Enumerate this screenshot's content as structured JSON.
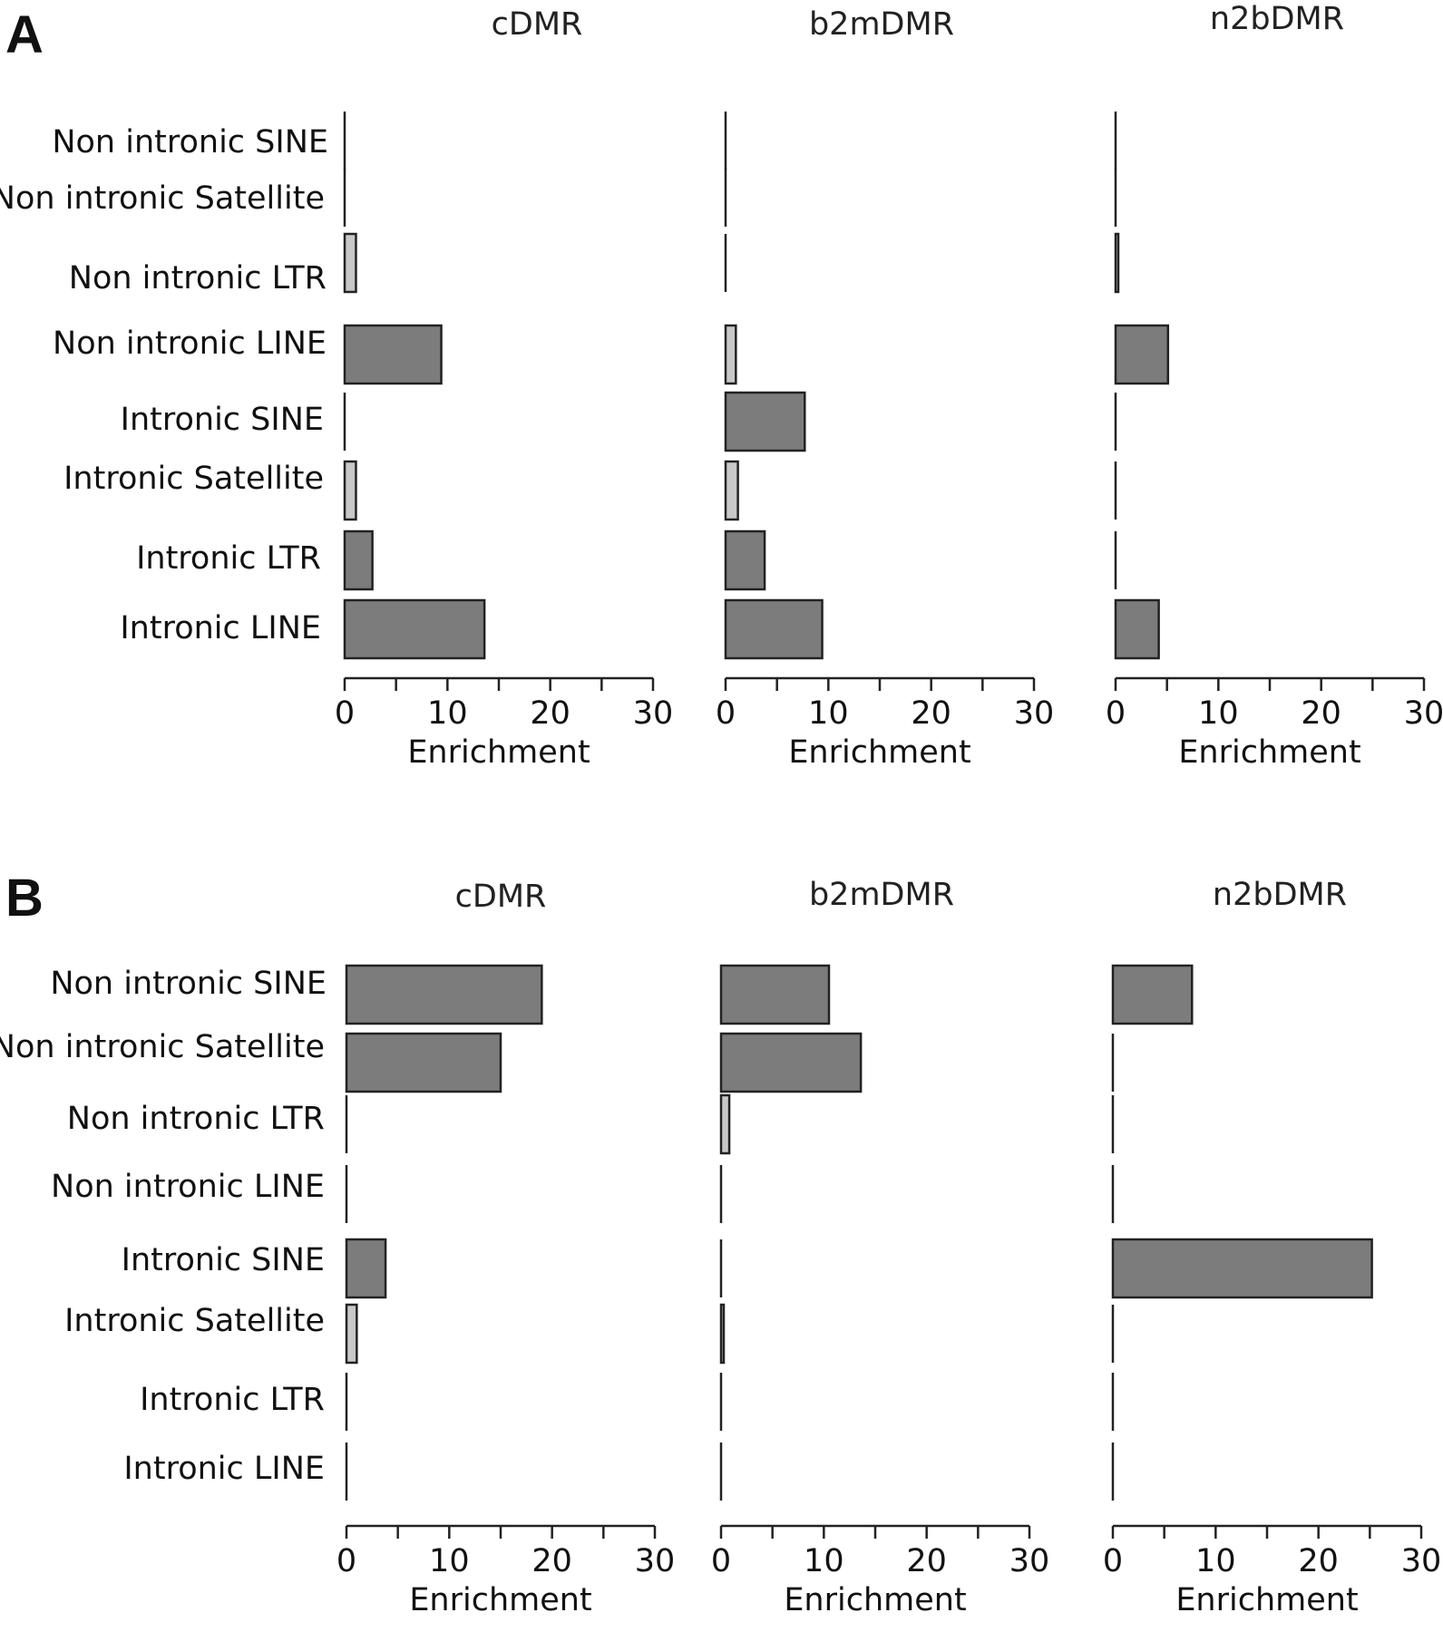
{
  "panels": [
    {
      "letter": "A"
    },
    {
      "letter": "B"
    }
  ],
  "categories": [
    "Non intronic SINE",
    "Non intronic Satellite",
    "Non intronic LTR",
    "Non intronic LINE",
    "Intronic SINE",
    "Intronic Satellite",
    "Intronic LTR",
    "Intronic LINE"
  ],
  "colors": {
    "bar": "#7c7c7c",
    "bar_small": "#c8c8c8",
    "axis": "#222222"
  },
  "chart_data": [
    {
      "type": "bar",
      "orientation": "horizontal",
      "panel": "A",
      "title": "cDMR",
      "xlabel": "Enrichment",
      "xlim": [
        0,
        30
      ],
      "xticks": [
        0,
        10,
        20,
        30
      ],
      "categories": [
        "Non intronic SINE",
        "Non intronic Satellite",
        "Non intronic LTR",
        "Non intronic LINE",
        "Intronic SINE",
        "Intronic Satellite",
        "Intronic LTR",
        "Intronic LINE"
      ],
      "values": [
        0,
        0,
        1.1,
        9.4,
        0,
        1.1,
        2.7,
        13.6
      ]
    },
    {
      "type": "bar",
      "orientation": "horizontal",
      "panel": "A",
      "title": "b2mDMR",
      "xlabel": "Enrichment",
      "xlim": [
        0,
        30
      ],
      "xticks": [
        0,
        10,
        20,
        30
      ],
      "categories": [
        "Non intronic SINE",
        "Non intronic Satellite",
        "Non intronic LTR",
        "Non intronic LINE",
        "Intronic SINE",
        "Intronic Satellite",
        "Intronic LTR",
        "Intronic LINE"
      ],
      "values": [
        0,
        0,
        0,
        1.0,
        7.7,
        1.2,
        3.8,
        9.4
      ]
    },
    {
      "type": "bar",
      "orientation": "horizontal",
      "panel": "A",
      "title": "n2bDMR",
      "xlabel": "Enrichment",
      "xlim": [
        0,
        30
      ],
      "xticks": [
        0,
        10,
        20,
        30
      ],
      "categories": [
        "Non intronic SINE",
        "Non intronic Satellite",
        "Non intronic LTR",
        "Non intronic LINE",
        "Intronic SINE",
        "Intronic Satellite",
        "Intronic LTR",
        "Intronic LINE"
      ],
      "values": [
        0,
        0,
        0.2,
        5.1,
        0,
        0,
        0,
        4.2
      ]
    },
    {
      "type": "bar",
      "orientation": "horizontal",
      "panel": "B",
      "title": "cDMR",
      "xlabel": "Enrichment",
      "xlim": [
        0,
        30
      ],
      "xticks": [
        0,
        10,
        20,
        30
      ],
      "categories": [
        "Non intronic SINE",
        "Non intronic Satellite",
        "Non intronic LTR",
        "Non intronic LINE",
        "Intronic SINE",
        "Intronic Satellite",
        "Intronic LTR",
        "Intronic LINE"
      ],
      "values": [
        19.0,
        15.0,
        0,
        0,
        3.8,
        1.0,
        0,
        0
      ]
    },
    {
      "type": "bar",
      "orientation": "horizontal",
      "panel": "B",
      "title": "b2mDMR",
      "xlabel": "Enrichment",
      "xlim": [
        0,
        30
      ],
      "xticks": [
        0,
        10,
        20,
        30
      ],
      "categories": [
        "Non intronic SINE",
        "Non intronic Satellite",
        "Non intronic LTR",
        "Non intronic LINE",
        "Intronic SINE",
        "Intronic Satellite",
        "Intronic LTR",
        "Intronic LINE"
      ],
      "values": [
        10.5,
        13.6,
        0.8,
        0,
        0,
        0.2,
        0,
        0
      ]
    },
    {
      "type": "bar",
      "orientation": "horizontal",
      "panel": "B",
      "title": "n2bDMR",
      "xlabel": "Enrichment",
      "xlim": [
        0,
        30
      ],
      "xticks": [
        0,
        10,
        20,
        30
      ],
      "categories": [
        "Non intronic SINE",
        "Non intronic Satellite",
        "Non intronic LTR",
        "Non intronic LINE",
        "Intronic SINE",
        "Intronic Satellite",
        "Intronic LTR",
        "Intronic LINE"
      ],
      "values": [
        7.7,
        0,
        0,
        0,
        25.2,
        0,
        0,
        0
      ]
    }
  ]
}
